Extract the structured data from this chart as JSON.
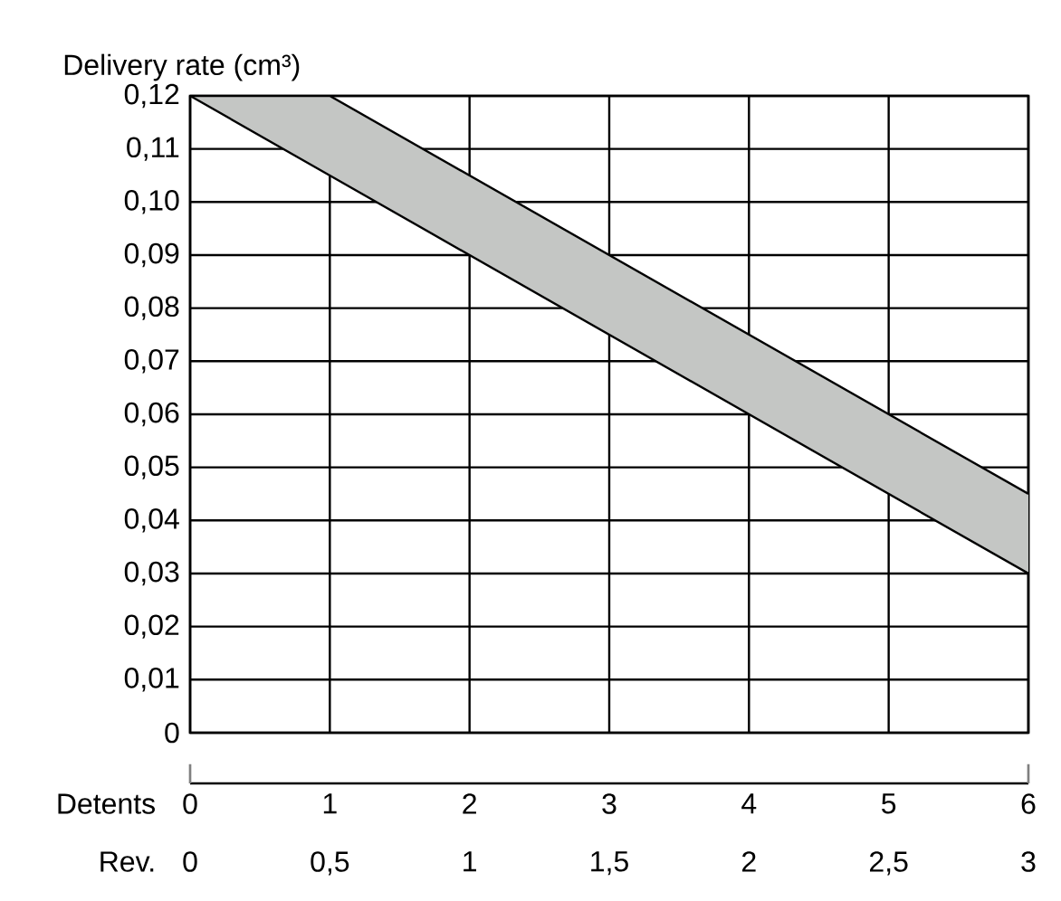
{
  "chart_data": {
    "type": "area",
    "ylabel": "Delivery rate (cm³)",
    "xlabel": "Detents",
    "x2label": "Rev.",
    "series": [
      {
        "type": "line",
        "color": "#000000",
        "x": [
          0,
          1,
          6
        ],
        "values": [
          0.12,
          0.12,
          0.045
        ]
      },
      {
        "type": "line",
        "color": "#000000",
        "x": [
          0,
          1,
          6
        ],
        "values": [
          0.12,
          0.105,
          0.03
        ]
      }
    ],
    "xlim": [
      0,
      6
    ],
    "xticks": [
      0,
      1,
      2,
      3,
      4,
      5,
      6
    ],
    "x2lim": [
      0,
      3
    ],
    "x2ticks": [
      0,
      {
        "value": 0.5,
        "label": "0,5"
      },
      1,
      {
        "value": 1.5,
        "label": "1,5"
      },
      2,
      {
        "value": 2.5,
        "label": "2,5"
      },
      3
    ],
    "ylim": [
      0,
      0.12
    ],
    "yticks": [
      0,
      {
        "value": 0.01,
        "label": "0,01"
      },
      {
        "value": 0.02,
        "label": "0,02"
      },
      {
        "value": 0.03,
        "label": "0,03"
      },
      {
        "value": 0.04,
        "label": "0,04"
      },
      {
        "value": 0.05,
        "label": "0,05"
      },
      {
        "value": 0.06,
        "label": "0,06"
      },
      {
        "value": 0.07,
        "label": "0,07"
      },
      {
        "value": 0.08,
        "label": "0,08"
      },
      {
        "value": 0.09,
        "label": "0,09"
      },
      {
        "value": 0.1,
        "label": "0,10"
      },
      {
        "value": 0.11,
        "label": "0,11"
      },
      {
        "value": 0.12,
        "label": "0,12"
      }
    ],
    "grid": true
  }
}
